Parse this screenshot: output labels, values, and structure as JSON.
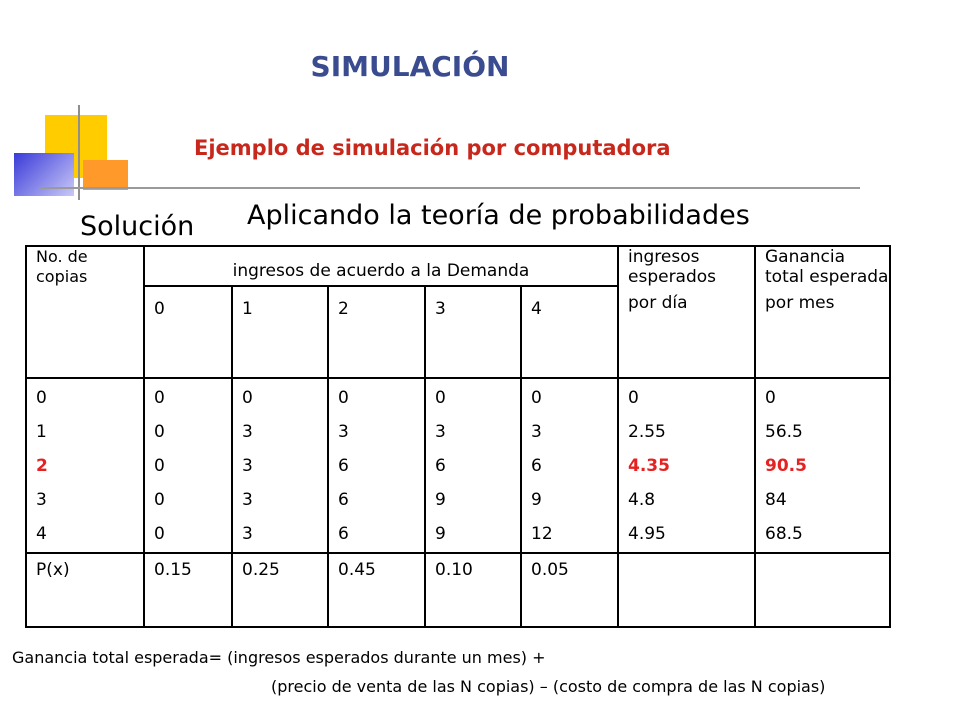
{
  "title": "SIMULACIÓN",
  "subtitle": "Ejemplo de simulación por computadora",
  "solucion_label": "Solución",
  "heading": "Aplicando la teoría de probabilidades",
  "table": {
    "col_no_copias": "No. de copias",
    "col_ingresos_demanda": "ingresos de acuerdo a la Demanda",
    "col_ingresos_esperados_line1": "ingresos esperados",
    "col_ingresos_esperados_line2": "por día",
    "col_ganancia_line1": "Ganancia total esperada",
    "col_ganancia_line2": "por mes",
    "demand_levels": [
      "0",
      "1",
      "2",
      "3",
      "4"
    ],
    "copies": [
      "0",
      "1",
      "2",
      "3",
      "4"
    ],
    "income_by_demand": [
      [
        "0",
        "0",
        "0",
        "0",
        "0"
      ],
      [
        "0",
        "3",
        "3",
        "3",
        "3"
      ],
      [
        "0",
        "3",
        "6",
        "6",
        "6"
      ],
      [
        "0",
        "3",
        "6",
        "9",
        "9"
      ],
      [
        "0",
        "3",
        "6",
        "9",
        "12"
      ]
    ],
    "expected_daily": [
      "0",
      "2.55",
      "4.35",
      "4.8",
      "4.95"
    ],
    "expected_monthly": [
      "0",
      "56.5",
      "90.5",
      "84",
      "68.5"
    ],
    "px_label": "P(x)",
    "probabilities": [
      "0.15",
      "0.25",
      "0.45",
      "0.10",
      "0.05"
    ]
  },
  "formula": {
    "line1": "Ganancia total esperada=  (ingresos esperados durante un mes) +",
    "line2": "(precio de venta de las N copias) – (costo de compra de las N copias)"
  },
  "colors": {
    "title": "#3a4c8f",
    "subtitle": "#c8271c",
    "highlight": "#e52222"
  }
}
